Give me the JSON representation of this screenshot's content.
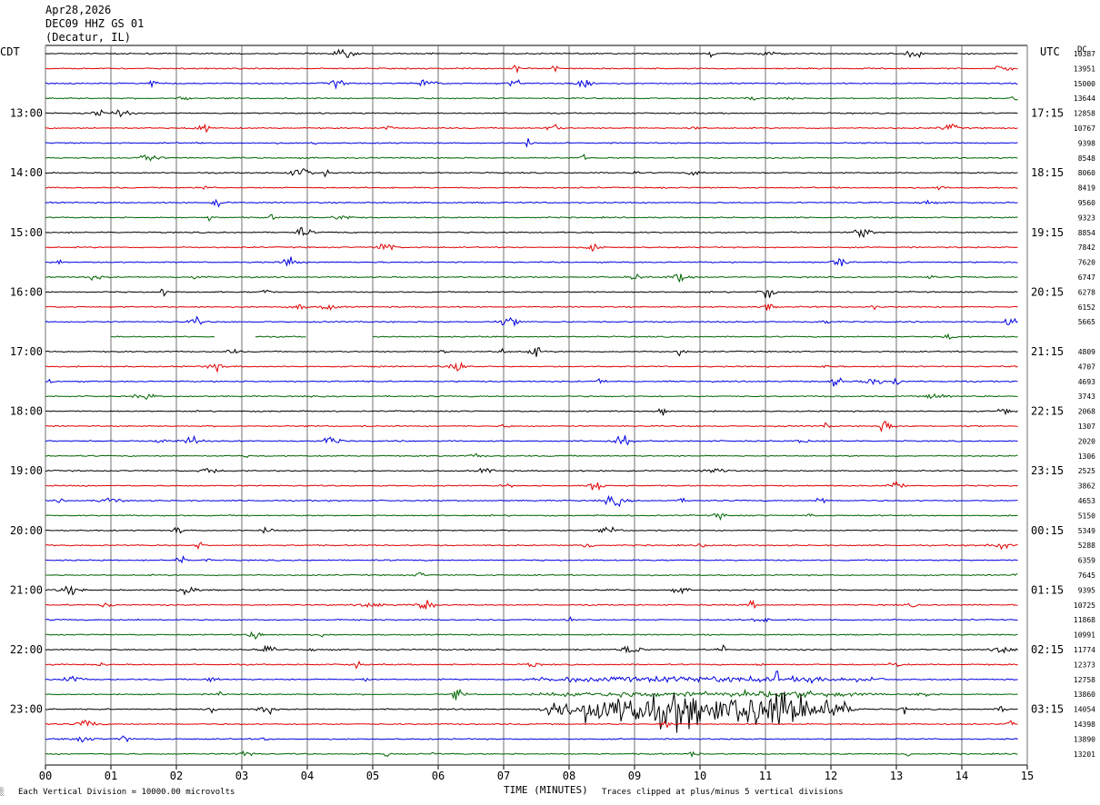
{
  "header": {
    "date": "Apr28,2026",
    "station": "DEC09 HHZ GS 01",
    "location": "(Decatur, IL)"
  },
  "left_tz": "CDT",
  "right_tz": "UTC",
  "dc_label": "DC",
  "chart_data": {
    "type": "line",
    "title": "",
    "xlabel": "TIME (MINUTES)",
    "xlim": [
      0,
      15
    ],
    "x_ticks": [
      "00",
      "01",
      "02",
      "03",
      "04",
      "05",
      "06",
      "07",
      "08",
      "09",
      "10",
      "11",
      "12",
      "13",
      "14",
      "15"
    ],
    "trace_count": 48,
    "trace_colors": [
      "#000000",
      "#e00000",
      "#0000e0",
      "#006400"
    ],
    "left_hour_labels": [
      "13:00",
      "14:00",
      "15:00",
      "16:00",
      "17:00",
      "18:00",
      "19:00",
      "20:00",
      "21:00",
      "22:00",
      "23:00"
    ],
    "right_hour_labels": [
      "17:15",
      "18:15",
      "19:15",
      "20:15",
      "21:15",
      "22:15",
      "23:15",
      "00:15",
      "01:15",
      "02:15",
      "03:15"
    ],
    "dc_offsets": [
      "10387",
      "13951",
      "15000",
      "13644",
      "12858",
      "10767",
      "9398",
      "8548",
      "8060",
      "8419",
      "9560",
      "9323",
      "8854",
      "7842",
      "7620",
      "6747",
      "6278",
      "6152",
      "5665",
      "",
      "4809",
      "4707",
      "4693",
      "3743",
      "2068",
      "1307",
      "2020",
      "1306",
      "2525",
      "3862",
      "4653",
      "5150",
      "5349",
      "5288",
      "6359",
      "7645",
      "9395",
      "10725",
      "11868",
      "10991",
      "11774",
      "12373",
      "12758",
      "13860",
      "14054",
      "14398",
      "13890",
      "13201"
    ],
    "events": [
      {
        "trace": 44,
        "start_min": 7.5,
        "end_min": 12.5,
        "peak_min": 10.5,
        "note": "large-amplitude signal, clipped"
      },
      {
        "trace": 43,
        "start_min": 7.3,
        "end_min": 12.9,
        "peak_min": 10.2
      },
      {
        "trace": 42,
        "start_min": 7.2,
        "end_min": 13.0,
        "peak_min": 10.0
      }
    ],
    "gaps": [
      {
        "trace": 19,
        "start_min": 0.0,
        "end_min": 1.0
      },
      {
        "trace": 19,
        "start_min": 2.6,
        "end_min": 3.2
      },
      {
        "trace": 19,
        "start_min": 4.0,
        "end_min": 5.0
      }
    ],
    "grid": true
  },
  "footer": {
    "scale_note": "Each Vertical Division = 10000.00 microvolts",
    "clip_note": "Traces clipped at plus/minus 5 vertical divisions",
    "mark": "░"
  }
}
